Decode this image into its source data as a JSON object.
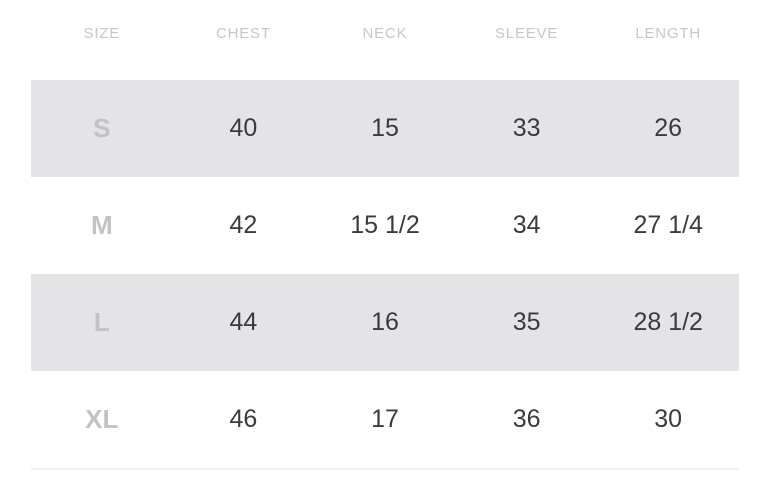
{
  "table": {
    "columns": [
      "SIZE",
      "CHEST",
      "NECK",
      "SLEEVE",
      "LENGTH"
    ],
    "rows": [
      {
        "size": "S",
        "chest": "40",
        "neck": "15",
        "sleeve": "33",
        "length": "26",
        "shaded": true
      },
      {
        "size": "M",
        "chest": "42",
        "neck": "15 1/2",
        "sleeve": "34",
        "length": "27 1/4",
        "shaded": false
      },
      {
        "size": "L",
        "chest": "44",
        "neck": "16",
        "sleeve": "35",
        "length": "28 1/2",
        "shaded": true
      },
      {
        "size": "XL",
        "chest": "46",
        "neck": "17",
        "sleeve": "36",
        "length": "30",
        "shaded": false
      }
    ]
  },
  "colors": {
    "shaded_row": "#e4e4e6",
    "header_text": "#c7c7c7",
    "size_text": "#c2c2c6",
    "value_text": "#3b3b3d",
    "divider": "#f0f0f1",
    "page_bg": "#ffffff"
  },
  "chart_data": {
    "type": "table",
    "title": "",
    "columns": [
      "SIZE",
      "CHEST",
      "NECK",
      "SLEEVE",
      "LENGTH"
    ],
    "rows": [
      [
        "S",
        "40",
        "15",
        "33",
        "26"
      ],
      [
        "M",
        "42",
        "15 1/2",
        "34",
        "27 1/4"
      ],
      [
        "L",
        "44",
        "16",
        "35",
        "28 1/2"
      ],
      [
        "XL",
        "46",
        "17",
        "36",
        "30"
      ]
    ],
    "layout_hints": {
      "zebra_striping": "rows S and L shaded light gray",
      "alignment": "all cells centered",
      "units": "inches (implied)"
    }
  }
}
